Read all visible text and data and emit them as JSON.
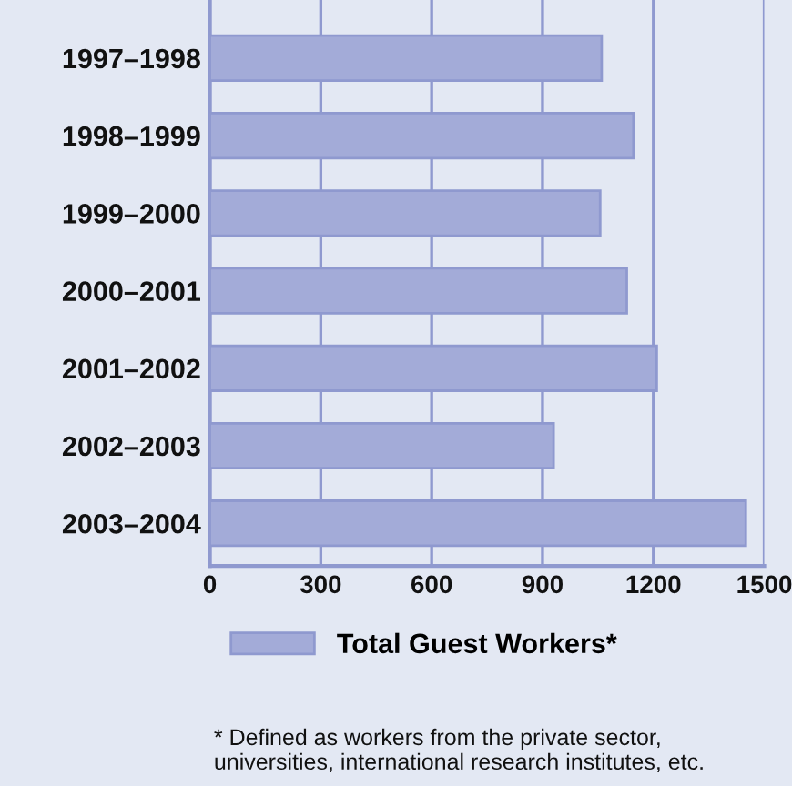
{
  "chart_data": {
    "type": "bar",
    "orientation": "horizontal",
    "categories": [
      "1997–1998",
      "1998–1999",
      "1999–2000",
      "2000–2001",
      "2001–2002",
      "2002–2003",
      "2003–2004"
    ],
    "series": [
      {
        "name": "Total Guest Workers*",
        "color": "#a3abd8",
        "values": [
          1060,
          1146,
          1056,
          1128,
          1209,
          930,
          1450
        ]
      }
    ],
    "xlim": [
      0,
      1500
    ],
    "xticks": [
      0,
      300,
      600,
      900,
      1200,
      1500
    ],
    "grid": "x",
    "legend": "bottom",
    "annotations": [
      "* Defined as workers from the private sector,\nuniversities, international research institutes, etc."
    ]
  }
}
